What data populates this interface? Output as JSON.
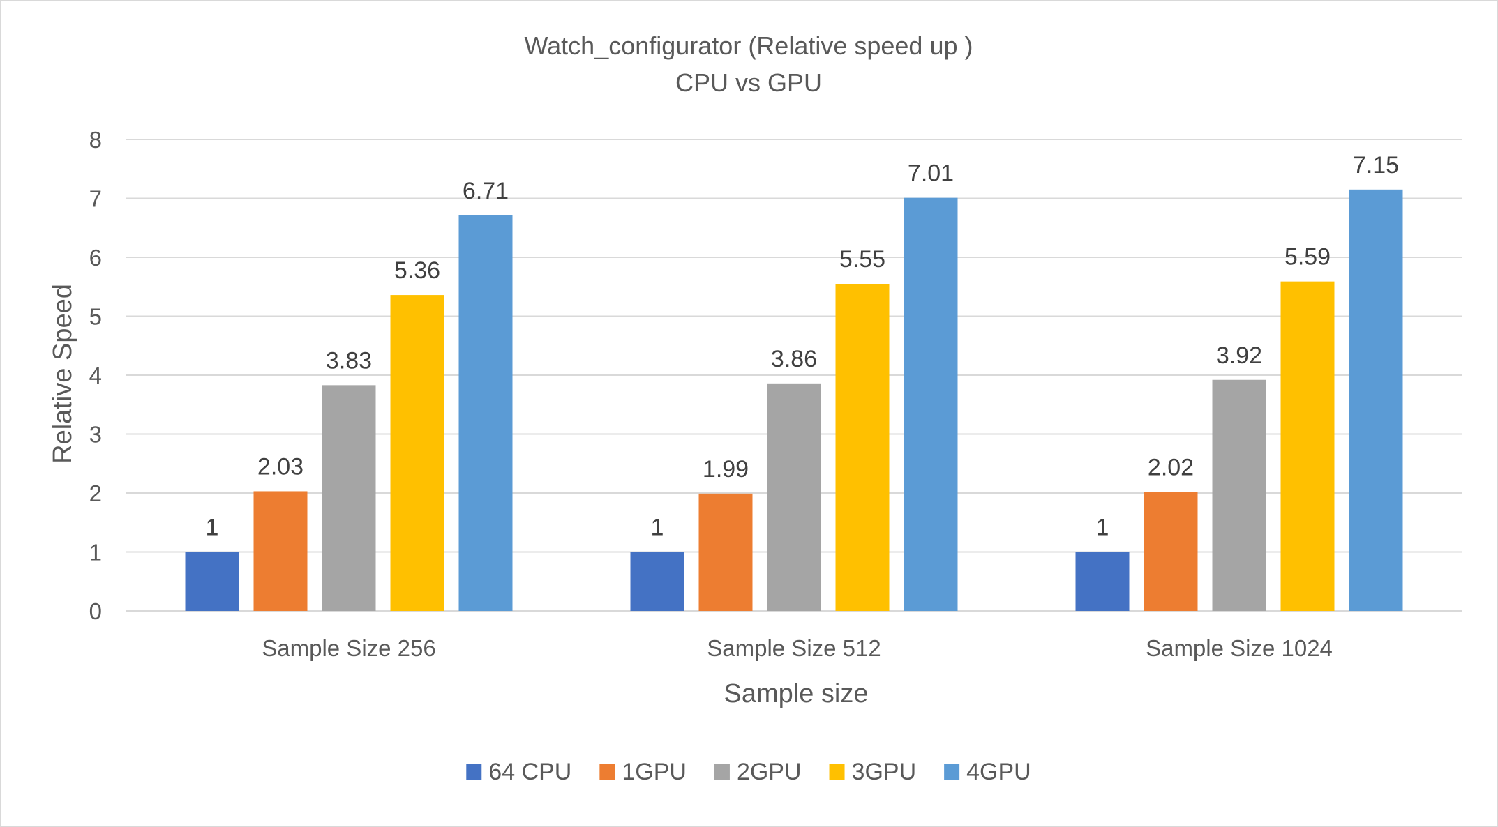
{
  "chart_data": {
    "type": "bar",
    "title": "Watch_configurator (Relative speed up )",
    "subtitle": "CPU vs GPU",
    "xlabel": "Sample size",
    "ylabel": "Relative Speed",
    "categories": [
      "Sample Size 256",
      "Sample Size 512",
      "Sample Size 1024"
    ],
    "series": [
      {
        "name": "64 CPU",
        "color": "#4472c4",
        "values": [
          1,
          1,
          1
        ]
      },
      {
        "name": "1GPU",
        "color": "#ed7d31",
        "values": [
          2.03,
          1.99,
          2.02
        ]
      },
      {
        "name": "2GPU",
        "color": "#a5a5a5",
        "values": [
          3.83,
          3.86,
          3.92
        ]
      },
      {
        "name": "3GPU",
        "color": "#ffc000",
        "values": [
          5.36,
          5.55,
          5.59
        ]
      },
      {
        "name": "4GPU",
        "color": "#5b9bd5",
        "values": [
          6.71,
          7.01,
          7.15
        ]
      }
    ],
    "ylim": [
      0,
      8
    ],
    "yticks": [
      0,
      1,
      2,
      3,
      4,
      5,
      6,
      7,
      8
    ],
    "grid": true,
    "legend": "bottom",
    "data_labels": true
  }
}
